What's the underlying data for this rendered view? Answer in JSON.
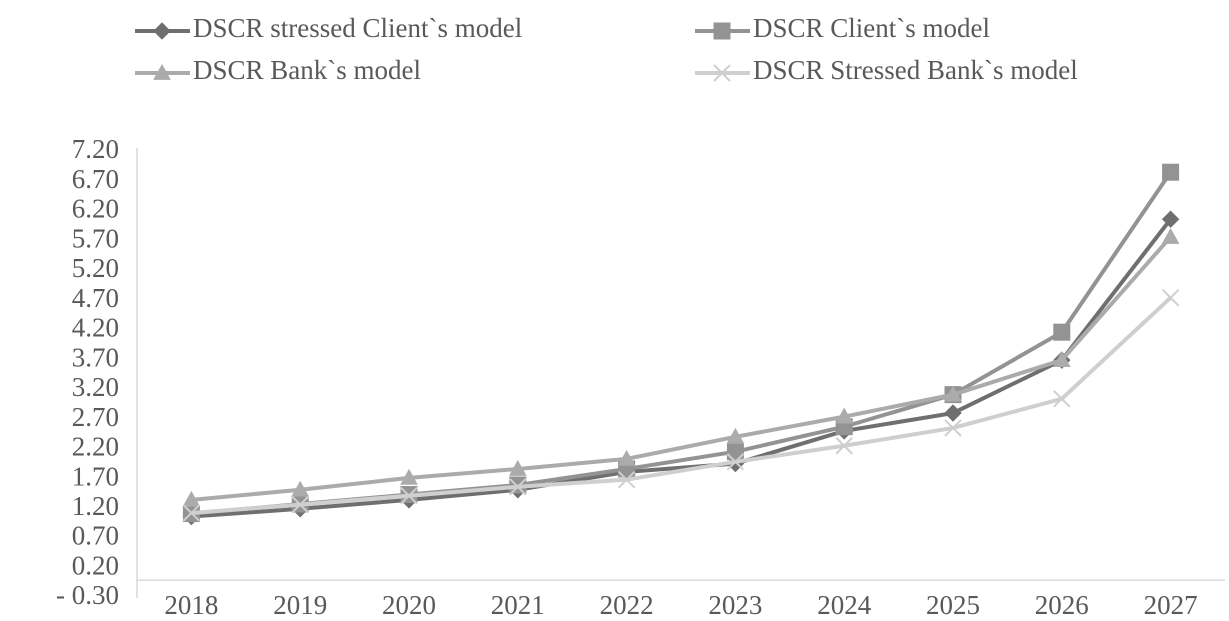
{
  "chart_data": {
    "type": "line",
    "categories": [
      "2018",
      "2019",
      "2020",
      "2021",
      "2022",
      "2023",
      "2024",
      "2025",
      "2026",
      "2027"
    ],
    "series": [
      {
        "name": "DSCR stressed Client`s model",
        "color": "#6f6f6f",
        "marker": "diamond",
        "values": [
          1.07,
          1.2,
          1.35,
          1.52,
          1.82,
          1.96,
          2.51,
          2.81,
          3.7,
          6.07
        ]
      },
      {
        "name": "DSCR Client`s model",
        "color": "#939393",
        "marker": "square",
        "values": [
          1.12,
          1.28,
          1.44,
          1.6,
          1.87,
          2.16,
          2.58,
          3.12,
          4.17,
          6.86
        ]
      },
      {
        "name": "DSCR  Bank`s model",
        "color": "#ababab",
        "marker": "triangle",
        "values": [
          1.35,
          1.52,
          1.72,
          1.87,
          2.04,
          2.41,
          2.75,
          3.12,
          3.7,
          5.77
        ]
      },
      {
        "name": "DSCR  Stressed Bank`s model",
        "color": "#cfcfcf",
        "marker": "x",
        "values": [
          1.13,
          1.27,
          1.42,
          1.57,
          1.69,
          1.99,
          2.26,
          2.56,
          3.05,
          4.75
        ]
      }
    ],
    "ylim": [
      -0.3,
      7.2
    ],
    "yticks": [
      {
        "value": -0.3,
        "label": "- 0.30"
      },
      {
        "value": 0.2,
        "label": "0.20"
      },
      {
        "value": 0.7,
        "label": "0.70"
      },
      {
        "value": 1.2,
        "label": "1.20"
      },
      {
        "value": 1.7,
        "label": "1.70"
      },
      {
        "value": 2.2,
        "label": "2.20"
      },
      {
        "value": 2.7,
        "label": "2.70"
      },
      {
        "value": 3.2,
        "label": "3.20"
      },
      {
        "value": 3.7,
        "label": "3.70"
      },
      {
        "value": 4.2,
        "label": "4.20"
      },
      {
        "value": 4.7,
        "label": "4.70"
      },
      {
        "value": 5.2,
        "label": "5.20"
      },
      {
        "value": 5.7,
        "label": "5.70"
      },
      {
        "value": 6.2,
        "label": "6.20"
      },
      {
        "value": 6.7,
        "label": "6.70"
      },
      {
        "value": 7.2,
        "label": "7.20"
      }
    ],
    "grid": false,
    "legend": "top"
  }
}
